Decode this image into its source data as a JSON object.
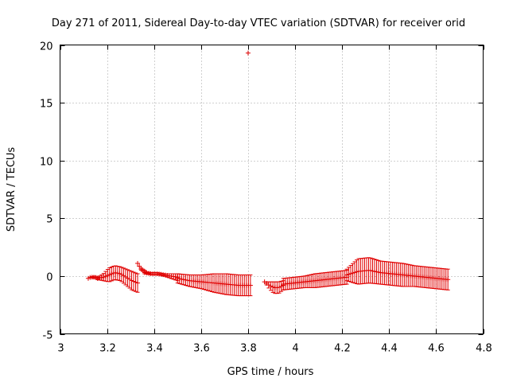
{
  "chart_data": {
    "type": "scatter",
    "title": "Day 271 of 2011, Sidereal Day-to-day VTEC variation (SDTVAR) for receiver orid",
    "xlabel": "GPS time / hours",
    "ylabel": "SDTVAR / TECUs",
    "xlim": [
      3,
      4.8
    ],
    "ylim": [
      -5,
      20
    ],
    "xticks": [
      3,
      3.2,
      3.4,
      3.6,
      3.8,
      4,
      4.2,
      4.4,
      4.6,
      4.8
    ],
    "yticks": [
      -5,
      0,
      5,
      10,
      15,
      20
    ],
    "xtick_labels": [
      "3",
      "3.2",
      "3.4",
      "3.6",
      "3.8",
      "4",
      "4.2",
      "4.4",
      "4.6",
      "4.8"
    ],
    "ytick_labels": [
      "-5",
      "0",
      "5",
      "10",
      "15",
      "20"
    ],
    "grid": true,
    "color": "#e00000",
    "segments": [
      {
        "x_start": 3.12,
        "x_end": 3.16,
        "y": [
          -0.2,
          -0.1,
          -0.1,
          -0.1,
          -0.2
        ],
        "err": [
          0.0,
          0.0,
          0.1,
          0.1,
          0.1
        ]
      },
      {
        "x_start": 3.16,
        "x_end": 3.33,
        "y": [
          -0.2,
          -0.1,
          0.1,
          0.3,
          0.2,
          -0.1,
          -0.4,
          -0.6
        ],
        "err": [
          0.1,
          0.3,
          0.6,
          0.6,
          0.6,
          0.7,
          0.8,
          0.8
        ]
      },
      {
        "x_start": 3.33,
        "x_end": 3.36,
        "y": [
          1.1,
          0.6,
          0.4
        ],
        "err": [
          0.0,
          0.1,
          0.1
        ]
      },
      {
        "x_start": 3.36,
        "x_end": 3.5,
        "y": [
          0.3,
          0.2,
          0.2,
          0.1,
          0.0,
          -0.1
        ],
        "err": [
          0.1,
          0.1,
          0.1,
          0.1,
          0.2,
          0.3
        ]
      },
      {
        "x_start": 3.5,
        "x_end": 3.81,
        "y": [
          -0.2,
          -0.4,
          -0.5,
          -0.6,
          -0.7,
          -0.8,
          -0.8
        ],
        "err": [
          0.4,
          0.5,
          0.6,
          0.8,
          0.9,
          0.9,
          0.9
        ]
      },
      {
        "x_start": 3.8,
        "x_end": 3.8,
        "y": [
          19.3
        ],
        "err": [
          0.0
        ]
      },
      {
        "x_start": 3.87,
        "x_end": 3.95,
        "y": [
          -0.5,
          -0.8,
          -1.0,
          -1.0,
          -0.8
        ],
        "err": [
          0.0,
          0.3,
          0.5,
          0.5,
          0.4
        ]
      },
      {
        "x_start": 3.95,
        "x_end": 4.22,
        "y": [
          -0.7,
          -0.6,
          -0.5,
          -0.4,
          -0.3,
          -0.2,
          -0.1
        ],
        "err": [
          0.5,
          0.5,
          0.5,
          0.6,
          0.6,
          0.6,
          0.6
        ]
      },
      {
        "x_start": 4.22,
        "x_end": 4.65,
        "y": [
          0.1,
          0.4,
          0.5,
          0.3,
          0.2,
          0.1,
          0.0,
          -0.1,
          -0.2,
          -0.3
        ],
        "err": [
          0.5,
          1.1,
          1.1,
          1.0,
          1.0,
          1.0,
          0.9,
          0.9,
          0.9,
          0.9
        ]
      }
    ]
  }
}
